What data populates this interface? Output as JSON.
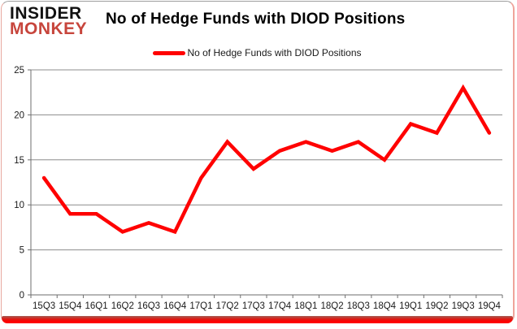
{
  "logo": {
    "line1": "INSIDER",
    "line2": "MONKEY"
  },
  "header": {
    "title": "No of Hedge Funds with DIOD Positions"
  },
  "legend": {
    "label": "No of Hedge Funds with DIOD Positions"
  },
  "chart_data": {
    "type": "line",
    "title": "No of Hedge Funds with DIOD Positions",
    "categories": [
      "15Q3",
      "15Q4",
      "16Q1",
      "16Q2",
      "16Q3",
      "16Q4",
      "17Q1",
      "17Q2",
      "17Q3",
      "17Q4",
      "18Q1",
      "18Q2",
      "18Q3",
      "18Q4",
      "19Q1",
      "19Q2",
      "19Q3",
      "19Q4"
    ],
    "series": [
      {
        "name": "No of Hedge Funds with DIOD Positions",
        "values": [
          13,
          9,
          9,
          7,
          8,
          7,
          13,
          17,
          14,
          16,
          17,
          16,
          17,
          15,
          19,
          18,
          23,
          18
        ]
      }
    ],
    "ylim": [
      0,
      25
    ],
    "yticks": [
      0,
      5,
      10,
      15,
      20,
      25
    ],
    "xlabel": "",
    "ylabel": "",
    "grid": true,
    "legend_position": "top-center"
  },
  "colors": {
    "line": "#ff0000",
    "grid": "#8c8c8c",
    "axis": "#6e6e6e",
    "tick_text": "#1a1a1a",
    "logo_black": "#111111",
    "logo_red": "#c7453c",
    "bottom_bar": "#ee0a00"
  }
}
